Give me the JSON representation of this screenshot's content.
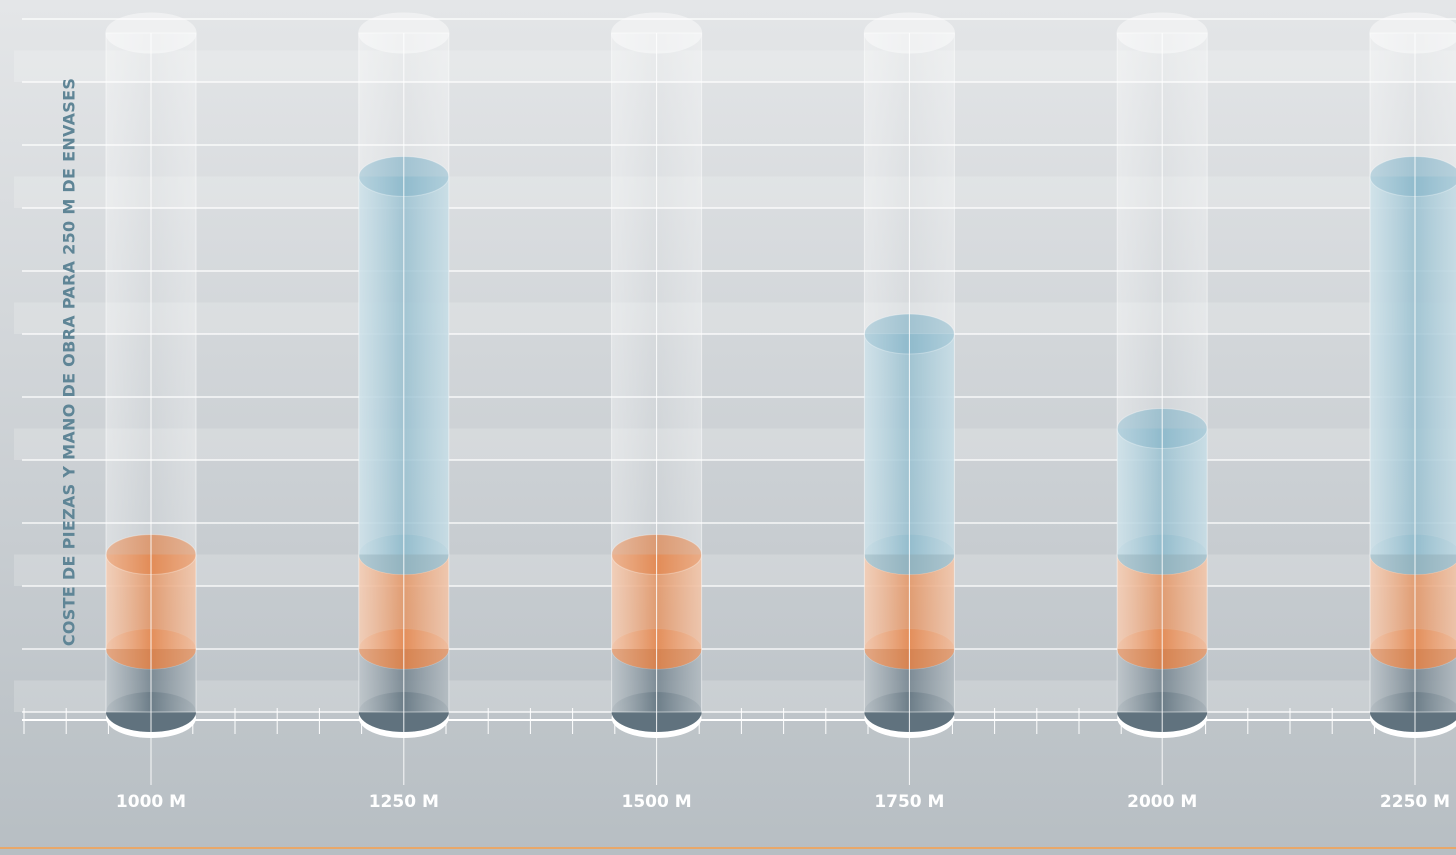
{
  "chart_data": {
    "type": "stacked-cylinder",
    "y_label": "COSTE DE PIEZAS Y MANO DE OBRA PARA 250 M DE ENVASES",
    "categories": [
      "1000 M",
      "1250 M",
      "1500 M",
      "1750 M",
      "2000 M",
      "2250 M"
    ],
    "series": [
      {
        "color": "#4f6370",
        "values": [
          1,
          1,
          1,
          1,
          1,
          1
        ]
      },
      {
        "color": "#e07a3c",
        "values": [
          1.5,
          1.5,
          1.5,
          1.5,
          1.5,
          1.5
        ]
      },
      {
        "color": "#7fb1c6",
        "values": [
          0,
          6,
          0,
          3.5,
          2,
          6
        ]
      }
    ],
    "ylim": [
      0,
      11
    ],
    "yticks": [
      0,
      1,
      2,
      3,
      4,
      5,
      6,
      7,
      8,
      9,
      10,
      11
    ],
    "grid": true,
    "show_tick_labels": false
  }
}
